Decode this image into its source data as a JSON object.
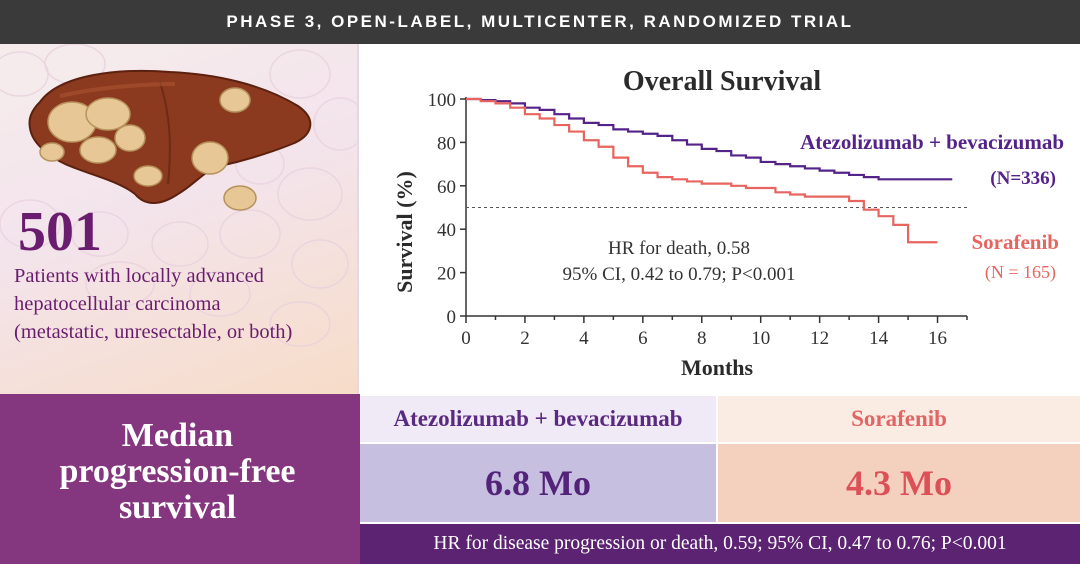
{
  "header": {
    "title": "PHASE 3, OPEN-LABEL, MULTICENTER, RANDOMIZED TRIAL"
  },
  "patients": {
    "count": "501",
    "description_lines": [
      "Patients with locally advanced",
      "hepatocellular carcinoma",
      "(metastatic, unresectable, or both)"
    ]
  },
  "pfs": {
    "label_lines": [
      "Median",
      "progression-free",
      "survival"
    ],
    "arm1": {
      "name": "Atezolizumab + bevacizumab",
      "value": "6.8 Mo"
    },
    "arm2": {
      "name": "Sorafenib",
      "value": "4.3 Mo"
    },
    "hr_text": "HR for disease progression or death, 0.59; 95% CI, 0.47 to 0.76; P<0.001"
  },
  "colors": {
    "purple": "#54238a",
    "coral": "#e8645f",
    "pfs_panel": "#84367e",
    "hr_band": "#5b2371"
  },
  "chart_data": {
    "type": "line",
    "title": "Overall Survival",
    "xlabel": "Months",
    "ylabel": "Survival (%)",
    "xlim": [
      0,
      17
    ],
    "ylim": [
      0,
      100
    ],
    "xticks": [
      0,
      2,
      4,
      6,
      8,
      10,
      12,
      14,
      16
    ],
    "yticks": [
      0,
      20,
      40,
      60,
      80,
      100
    ],
    "reference_line": 50,
    "annotation_lines": [
      "HR for death, 0.58",
      "95% CI, 0.42 to 0.79; P<0.001"
    ],
    "series": [
      {
        "name": "Atezolizumab + bevacizumab",
        "n_label": "(N=336)",
        "color": "#54238a",
        "x": [
          0,
          0.5,
          1,
          1.5,
          2,
          2.5,
          3,
          3.5,
          4,
          4.5,
          5,
          5.5,
          6,
          6.5,
          7,
          7.5,
          8,
          8.5,
          9,
          9.5,
          10,
          10.5,
          11,
          11.5,
          12,
          12.5,
          13,
          13.5,
          14,
          14.5,
          15,
          15.5,
          16,
          16.5
        ],
        "y": [
          100,
          99.5,
          99,
          98,
          96,
          95,
          93,
          91,
          89,
          88,
          86,
          85,
          84,
          83,
          81,
          79,
          77,
          76,
          74,
          73,
          71,
          70,
          69,
          68,
          67,
          66,
          65,
          64,
          63,
          63,
          63,
          63,
          63,
          63
        ]
      },
      {
        "name": "Sorafenib",
        "n_label": "(N = 165)",
        "color": "#e8645f",
        "x": [
          0,
          0.5,
          1,
          1.5,
          2,
          2.5,
          3,
          3.5,
          4,
          4.5,
          5,
          5.5,
          6,
          6.5,
          7,
          7.5,
          8,
          8.5,
          9,
          9.5,
          10,
          10.5,
          11,
          11.5,
          12,
          12.5,
          13,
          13.5,
          14,
          14.5,
          15,
          15.5,
          16
        ],
        "y": [
          100,
          99,
          98,
          96,
          93,
          91,
          88,
          85,
          81,
          78,
          73,
          69,
          66,
          64,
          63,
          62,
          61,
          61,
          60,
          59,
          59,
          57,
          56,
          55,
          55,
          55,
          53,
          49,
          46,
          42,
          34,
          34,
          34
        ]
      }
    ]
  }
}
